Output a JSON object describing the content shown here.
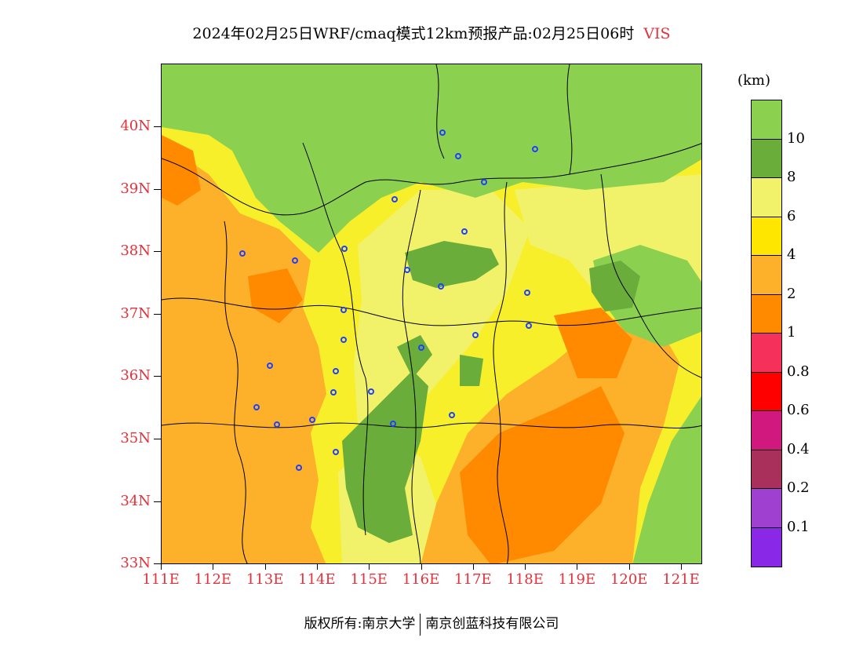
{
  "title": {
    "text": "2024年02月25日WRF/cmaq模式12km预报产品:02月25日06时",
    "variable": "VIS"
  },
  "map": {
    "lat_labels": [
      "40N",
      "39N",
      "38N",
      "37N",
      "36N",
      "35N",
      "34N",
      "33N"
    ],
    "lon_labels": [
      "111E",
      "112E",
      "113E",
      "114E",
      "115E",
      "116E",
      "117E",
      "118E",
      "119E",
      "120E",
      "121E"
    ]
  },
  "colorbar": {
    "unit": "(km)",
    "colors": [
      "#8cd050",
      "#6aad3a",
      "#f2f26a",
      "#ffe600",
      "#fdb12a",
      "#ff8a00",
      "#f5305a",
      "#ff0000",
      "#d0187e",
      "#a8305a",
      "#a040d0",
      "#8a28e8"
    ],
    "labels": [
      "10",
      "8",
      "6",
      "4",
      "2",
      "1",
      "0.8",
      "0.6",
      "0.4",
      "0.2",
      "0.1"
    ]
  },
  "copyright": {
    "left": "版权所有:南京大学",
    "right": "南京创蓝科技有限公司"
  },
  "colors": {
    "label_red": "#e8303a",
    "station_marker": "#2040ff"
  }
}
